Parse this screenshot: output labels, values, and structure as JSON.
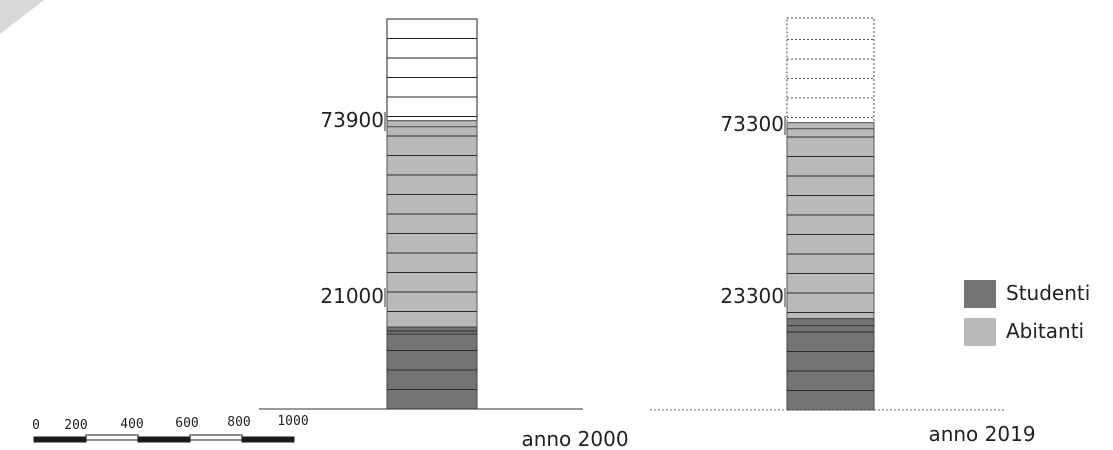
{
  "chart_data": {
    "type": "bar",
    "stacked": true,
    "categories": [
      "anno 2000",
      "anno 2019"
    ],
    "series": [
      {
        "name": "Studenti",
        "values": [
          21000,
          23300
        ],
        "color": "#747474"
      },
      {
        "name": "Abitanti",
        "values": [
          73900,
          73300
        ],
        "color": "#b9b9b9"
      }
    ],
    "value_labels": [
      [
        "21000",
        "73900"
      ],
      [
        "23300",
        "73300"
      ]
    ],
    "legend": {
      "position": "right",
      "items": [
        "Studenti",
        "Abitanti"
      ]
    },
    "empty_fill": "#ffffff",
    "grid": false
  },
  "scale_bar": {
    "ticks": [
      "0",
      "200",
      "400",
      "600",
      "800",
      "1000"
    ]
  },
  "decoration": {
    "corner_color": "#d9d9d9"
  }
}
